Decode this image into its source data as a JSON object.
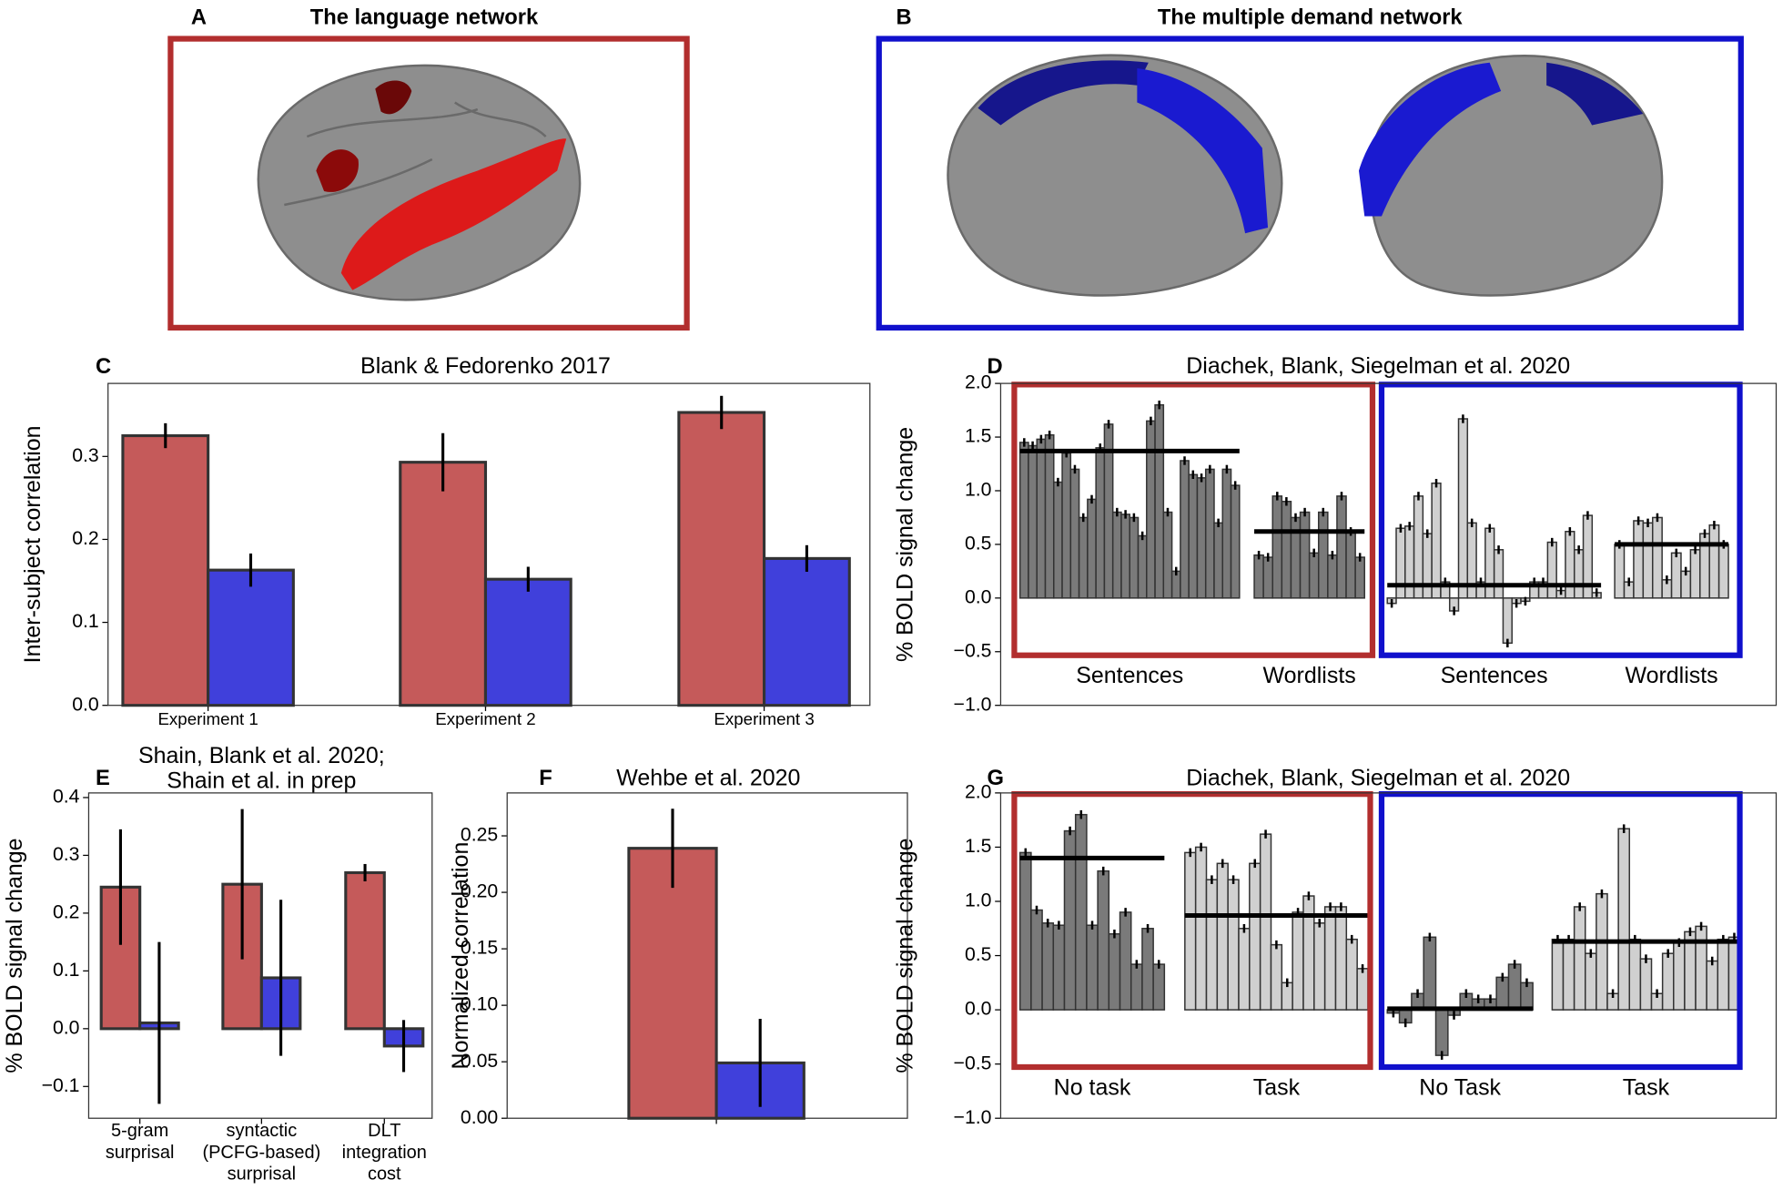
{
  "brain_panels": [
    {
      "letter": "A",
      "title": "The language network"
    },
    {
      "letter": "B",
      "title": "The multiple demand network"
    }
  ],
  "chart_data": [
    {
      "type": "bar",
      "letter": "C",
      "title": "Blank & Fedorenko 2017",
      "y_label": "Inter-subject correlation",
      "categories": [
        "Experiment 1",
        "Experiment 2",
        "Experiment 3"
      ],
      "series": [
        {
          "color": "#c55a5a",
          "values": [
            0.325,
            0.293,
            0.353
          ],
          "errors": [
            0.015,
            0.035,
            0.02
          ]
        },
        {
          "color": "#4040db",
          "values": [
            0.163,
            0.152,
            0.177
          ],
          "errors": [
            0.02,
            0.015,
            0.016
          ]
        }
      ],
      "ylim": [
        0,
        0.388
      ],
      "yticks": [
        {
          "value": 0,
          "label": "0.0"
        },
        0.1,
        0.2,
        0.3
      ]
    },
    {
      "type": "bar_groups",
      "letter": "D",
      "title": "Diachek, Blank, Siegelman et al. 2020",
      "y_label": "% BOLD signal change",
      "groups": [
        {
          "label": "Sentences",
          "color": "#7a7a7a",
          "box_color": "#b22e2e",
          "mean": 1.37,
          "error": 0.04,
          "values": [
            1.45,
            1.42,
            1.48,
            1.52,
            1.08,
            1.35,
            1.2,
            0.75,
            0.92,
            1.4,
            1.62,
            0.8,
            0.78,
            0.75,
            0.58,
            1.65,
            1.8,
            0.8,
            0.25,
            1.28,
            1.15,
            1.12,
            1.2,
            0.7,
            1.2,
            1.05
          ]
        },
        {
          "label": "Wordlists",
          "color": "#7a7a7a",
          "box_color": "#b22e2e",
          "mean": 0.62,
          "error": 0.04,
          "values": [
            0.4,
            0.38,
            0.95,
            0.9,
            0.75,
            0.8,
            0.42,
            0.8,
            0.4,
            0.95,
            0.62,
            0.38
          ]
        },
        {
          "label": "Sentences",
          "color": "#d0d0d0",
          "box_color": "#1010cc",
          "mean": 0.12,
          "error": 0.04,
          "values": [
            -0.05,
            0.65,
            0.67,
            0.95,
            0.6,
            1.07,
            0.15,
            -0.12,
            1.67,
            0.7,
            0.15,
            0.65,
            0.45,
            -0.42,
            -0.05,
            -0.03,
            0.15,
            0.15,
            0.52,
            0.07,
            0.62,
            0.45,
            0.77,
            0.05
          ]
        },
        {
          "label": "Wordlists",
          "color": "#d0d0d0",
          "box_color": "#1010cc",
          "mean": 0.5,
          "error": 0.04,
          "values": [
            0.5,
            0.15,
            0.72,
            0.7,
            0.75,
            0.17,
            0.42,
            0.25,
            0.45,
            0.6,
            0.68,
            0.5
          ]
        }
      ],
      "ylim": [
        -1,
        2
      ],
      "yticks": [
        {
          "value": -1,
          "label": "−1.0"
        },
        {
          "value": -0.5,
          "label": "−0.5"
        },
        {
          "value": 0,
          "label": "0.0"
        },
        0.5,
        {
          "value": 1,
          "label": "1.0"
        },
        1.5,
        {
          "value": 2,
          "label": "2.0"
        }
      ]
    },
    {
      "type": "bar",
      "letter": "E",
      "title": "Shain, Blank et al. 2020;\nShain et al. in prep",
      "y_label": "% BOLD signal change",
      "categories": [
        "5-gram\nsurprisal",
        "syntactic\n(PCFG-based)\nsurprisal",
        "DLT\nintegration\ncost"
      ],
      "series": [
        {
          "color": "#c55a5a",
          "values": [
            0.245,
            0.25,
            0.27
          ],
          "errors": [
            0.1,
            0.13,
            0.015
          ]
        },
        {
          "color": "#4040db",
          "values": [
            0.01,
            0.088,
            -0.03
          ],
          "errors": [
            0.14,
            0.135,
            0.045
          ]
        }
      ],
      "ylim": [
        -0.155,
        0.408
      ],
      "yticks": [
        {
          "value": -0.1,
          "label": "−0.1"
        },
        {
          "value": 0,
          "label": "0.0"
        },
        0.1,
        0.2,
        0.3,
        0.4
      ]
    },
    {
      "type": "bar",
      "letter": "F",
      "title": "Wehbe et al. 2020",
      "y_label": "Normalized correlation",
      "categories": [
        null
      ],
      "series": [
        {
          "color": "#c55a5a",
          "values": [
            0.239
          ],
          "errors": [
            0.035
          ]
        },
        {
          "color": "#4040db",
          "values": [
            0.049
          ],
          "errors": [
            0.039
          ]
        }
      ],
      "ylim": [
        0,
        0.288
      ],
      "yticks": [
        {
          "value": 0,
          "label": "0.00"
        },
        0.05,
        {
          "value": 0.1,
          "label": "0.10"
        },
        0.15,
        {
          "value": 0.2,
          "label": "0.20"
        },
        0.25
      ]
    },
    {
      "type": "bar_groups",
      "letter": "G",
      "title": "Diachek, Blank, Siegelman et al. 2020",
      "y_label": "% BOLD signal change",
      "groups": [
        {
          "label": "No task",
          "color": "#7a7a7a",
          "box_color": "#b22e2e",
          "mean": 1.4,
          "error": 0.04,
          "values": [
            1.45,
            0.92,
            0.8,
            0.78,
            1.65,
            1.8,
            0.78,
            1.28,
            0.7,
            0.9,
            0.42,
            0.75,
            0.42
          ]
        },
        {
          "label": "Task",
          "color": "#d0d0d0",
          "box_color": "#b22e2e",
          "mean": 0.87,
          "error": 0.04,
          "values": [
            1.45,
            1.5,
            1.2,
            1.35,
            1.2,
            0.75,
            1.35,
            1.62,
            0.6,
            0.25,
            0.9,
            1.05,
            0.8,
            0.95,
            0.95,
            0.65,
            0.38
          ]
        },
        {
          "label": "No Task",
          "color": "#7a7a7a",
          "box_color": "#1010cc",
          "mean": 0.01,
          "error": 0.04,
          "values": [
            -0.03,
            -0.12,
            0.15,
            0.67,
            -0.42,
            -0.05,
            0.15,
            0.1,
            0.1,
            0.3,
            0.42,
            0.25
          ]
        },
        {
          "label": "Task",
          "color": "#d0d0d0",
          "box_color": "#1010cc",
          "mean": 0.63,
          "error": 0.04,
          "values": [
            0.65,
            0.65,
            0.95,
            0.52,
            1.07,
            0.15,
            1.67,
            0.65,
            0.47,
            0.15,
            0.52,
            0.62,
            0.72,
            0.77,
            0.45,
            0.65,
            0.67
          ]
        }
      ],
      "ylim": [
        -1,
        2
      ],
      "yticks": [
        {
          "value": -1,
          "label": "−1.0"
        },
        {
          "value": -0.5,
          "label": "−0.5"
        },
        {
          "value": 0,
          "label": "0.0"
        },
        0.5,
        {
          "value": 1,
          "label": "1.0"
        },
        1.5,
        {
          "value": 2,
          "label": "2.0"
        }
      ]
    }
  ]
}
